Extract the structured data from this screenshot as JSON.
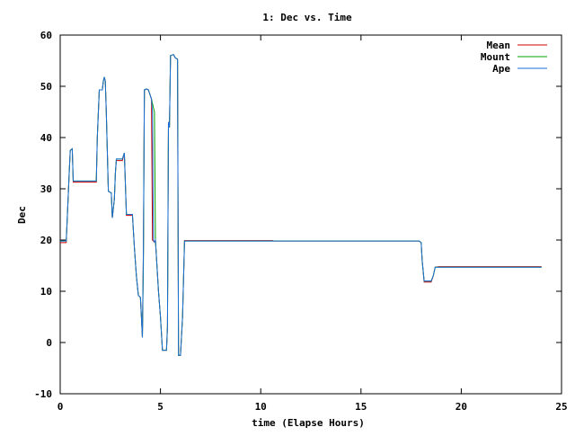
{
  "chart_data": {
    "type": "line",
    "title": "1: Dec vs. Time",
    "xlabel": "time (Elapse Hours)",
    "ylabel": "Dec",
    "xlim": [
      0,
      25
    ],
    "ylim": [
      -10,
      60
    ],
    "x_ticks": [
      "0",
      "5",
      "10",
      "15",
      "20",
      "25"
    ],
    "y_ticks": [
      "-10",
      "0",
      "10",
      "20",
      "30",
      "40",
      "50",
      "60"
    ],
    "grid": false,
    "legend_position": "top-right",
    "colors": {
      "Mean": "#cc0000",
      "Mount": "#00a000",
      "Ape": "#1a6fd6"
    },
    "series": [
      {
        "name": "Mean",
        "points": [
          [
            0,
            19.5
          ],
          [
            0.3,
            19.5
          ],
          [
            0.35,
            24
          ],
          [
            0.45,
            33
          ],
          [
            0.5,
            37.5
          ],
          [
            0.6,
            37.8
          ],
          [
            0.65,
            31.3
          ],
          [
            1.8,
            31.3
          ],
          [
            1.85,
            40
          ],
          [
            1.95,
            49.3
          ],
          [
            2.1,
            49.3
          ],
          [
            2.15,
            51
          ],
          [
            2.2,
            51.8
          ],
          [
            2.25,
            51
          ],
          [
            2.3,
            45
          ],
          [
            2.4,
            29.5
          ],
          [
            2.55,
            29.2
          ],
          [
            2.6,
            24.3
          ],
          [
            2.7,
            28
          ],
          [
            2.75,
            33
          ],
          [
            2.8,
            35.5
          ],
          [
            3.1,
            35.5
          ],
          [
            3.2,
            37
          ],
          [
            3.3,
            24.8
          ],
          [
            3.6,
            24.8
          ],
          [
            3.7,
            18.5
          ],
          [
            3.8,
            13
          ],
          [
            3.9,
            9.2
          ],
          [
            4.0,
            8.8
          ],
          [
            4.05,
            5
          ],
          [
            4.1,
            1
          ],
          [
            4.15,
            18
          ],
          [
            4.2,
            49.3
          ],
          [
            4.3,
            49.5
          ],
          [
            4.4,
            49.3
          ],
          [
            4.55,
            47.5
          ],
          [
            4.6,
            20
          ],
          [
            4.7,
            19.6
          ],
          [
            4.75,
            20
          ],
          [
            4.9,
            10
          ],
          [
            5.0,
            5
          ],
          [
            5.1,
            -1.5
          ],
          [
            5.3,
            -1.5
          ],
          [
            5.35,
            3
          ],
          [
            5.4,
            43
          ],
          [
            5.45,
            42
          ],
          [
            5.5,
            56
          ],
          [
            5.65,
            56.2
          ],
          [
            5.75,
            55.5
          ],
          [
            5.85,
            55.3
          ],
          [
            5.9,
            -2.5
          ],
          [
            6.0,
            -2.5
          ],
          [
            6.1,
            5
          ],
          [
            6.2,
            19.9
          ],
          [
            10.6,
            19.9
          ],
          [
            10.65,
            19.8
          ],
          [
            17.9,
            19.8
          ],
          [
            18.0,
            19.5
          ],
          [
            18.05,
            16
          ],
          [
            18.15,
            11.8
          ],
          [
            18.5,
            11.8
          ],
          [
            18.6,
            13
          ],
          [
            18.7,
            14.7
          ],
          [
            18.9,
            14.8
          ],
          [
            24.0,
            14.8
          ]
        ]
      },
      {
        "name": "Mount",
        "points": [
          [
            0,
            19.8
          ],
          [
            0.3,
            19.8
          ],
          [
            0.35,
            24
          ],
          [
            0.45,
            33
          ],
          [
            0.5,
            37.5
          ],
          [
            0.6,
            37.8
          ],
          [
            0.65,
            31.5
          ],
          [
            1.8,
            31.5
          ],
          [
            1.85,
            40
          ],
          [
            1.95,
            49.3
          ],
          [
            2.1,
            49.3
          ],
          [
            2.15,
            51
          ],
          [
            2.2,
            51.8
          ],
          [
            2.25,
            51
          ],
          [
            2.3,
            45
          ],
          [
            2.4,
            29.5
          ],
          [
            2.55,
            29.2
          ],
          [
            2.6,
            24.3
          ],
          [
            2.7,
            28
          ],
          [
            2.75,
            33
          ],
          [
            2.8,
            35.8
          ],
          [
            3.1,
            35.8
          ],
          [
            3.2,
            37
          ],
          [
            3.3,
            25
          ],
          [
            3.6,
            25
          ],
          [
            3.7,
            18.5
          ],
          [
            3.8,
            13
          ],
          [
            3.9,
            9.2
          ],
          [
            4.0,
            8.8
          ],
          [
            4.05,
            5
          ],
          [
            4.1,
            1
          ],
          [
            4.15,
            15
          ],
          [
            4.2,
            49.3
          ],
          [
            4.3,
            49.5
          ],
          [
            4.4,
            49.3
          ],
          [
            4.55,
            47.5
          ],
          [
            4.7,
            45
          ],
          [
            4.75,
            20
          ],
          [
            4.9,
            10
          ],
          [
            5.0,
            5
          ],
          [
            5.1,
            -1.5
          ],
          [
            5.3,
            -1.5
          ],
          [
            5.35,
            3
          ],
          [
            5.4,
            43
          ],
          [
            5.45,
            42
          ],
          [
            5.5,
            56
          ],
          [
            5.65,
            56.2
          ],
          [
            5.75,
            55.5
          ],
          [
            5.85,
            55.3
          ],
          [
            5.9,
            -2.5
          ],
          [
            6.0,
            -2.5
          ],
          [
            6.1,
            5
          ],
          [
            6.2,
            19.8
          ],
          [
            17.9,
            19.8
          ],
          [
            18.0,
            19.5
          ],
          [
            18.05,
            16
          ],
          [
            18.15,
            12
          ],
          [
            18.5,
            12
          ],
          [
            18.6,
            13
          ],
          [
            18.7,
            14.7
          ],
          [
            24.0,
            14.7
          ]
        ]
      },
      {
        "name": "Ape",
        "points": [
          [
            0,
            19.8
          ],
          [
            0.3,
            19.8
          ],
          [
            0.35,
            24
          ],
          [
            0.45,
            33
          ],
          [
            0.5,
            37.5
          ],
          [
            0.6,
            37.8
          ],
          [
            0.65,
            31.5
          ],
          [
            1.8,
            31.5
          ],
          [
            1.85,
            40
          ],
          [
            1.95,
            49.3
          ],
          [
            2.1,
            49.3
          ],
          [
            2.15,
            51
          ],
          [
            2.2,
            51.8
          ],
          [
            2.25,
            51
          ],
          [
            2.3,
            45
          ],
          [
            2.4,
            29.5
          ],
          [
            2.55,
            29.2
          ],
          [
            2.6,
            24.3
          ],
          [
            2.7,
            28
          ],
          [
            2.75,
            33
          ],
          [
            2.8,
            35.8
          ],
          [
            3.1,
            35.8
          ],
          [
            3.2,
            37
          ],
          [
            3.3,
            25
          ],
          [
            3.6,
            25
          ],
          [
            3.7,
            18.5
          ],
          [
            3.8,
            13
          ],
          [
            3.9,
            9.2
          ],
          [
            4.0,
            8.8
          ],
          [
            4.05,
            5
          ],
          [
            4.1,
            1
          ],
          [
            4.15,
            18
          ],
          [
            4.2,
            49.3
          ],
          [
            4.3,
            49.5
          ],
          [
            4.4,
            49.3
          ],
          [
            4.55,
            47.5
          ],
          [
            4.6,
            45
          ],
          [
            4.65,
            20
          ],
          [
            4.7,
            19.6
          ],
          [
            4.75,
            20
          ],
          [
            4.9,
            10
          ],
          [
            5.0,
            5
          ],
          [
            5.1,
            -1.5
          ],
          [
            5.3,
            -1.5
          ],
          [
            5.35,
            3
          ],
          [
            5.4,
            43
          ],
          [
            5.45,
            42
          ],
          [
            5.5,
            56
          ],
          [
            5.65,
            56.2
          ],
          [
            5.75,
            55.5
          ],
          [
            5.85,
            55.3
          ],
          [
            5.9,
            -2.5
          ],
          [
            6.0,
            -2.5
          ],
          [
            6.1,
            5
          ],
          [
            6.2,
            19.8
          ],
          [
            17.9,
            19.8
          ],
          [
            18.0,
            19.5
          ],
          [
            18.05,
            16
          ],
          [
            18.15,
            12
          ],
          [
            18.5,
            12
          ],
          [
            18.6,
            13
          ],
          [
            18.7,
            14.7
          ],
          [
            24.0,
            14.7
          ]
        ]
      }
    ]
  }
}
